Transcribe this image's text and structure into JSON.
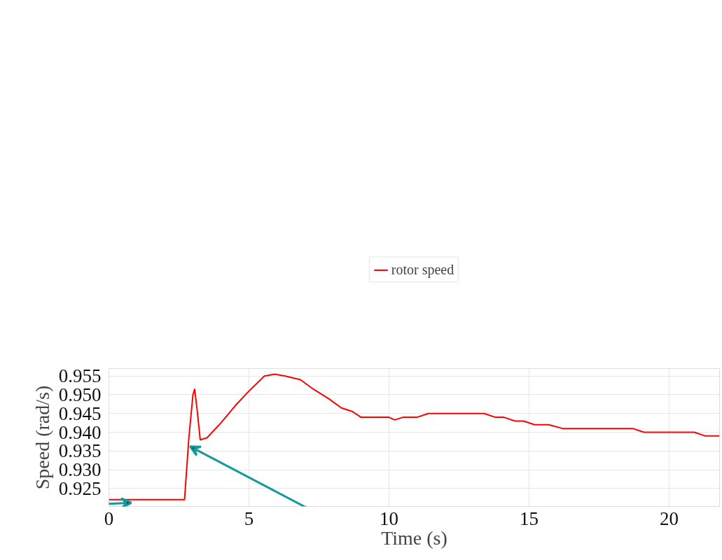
{
  "chart_data": {
    "type": "line",
    "xlabel": "Time (s)",
    "ylabel": "Speed (rad/s)",
    "xlim": [
      0,
      21.8
    ],
    "ylim": [
      0.9202,
      0.957
    ],
    "xticks": [
      0,
      5,
      10,
      15,
      20
    ],
    "yticks": [
      0.925,
      {
        "value": 0.93,
        "label": "0.930"
      },
      0.935,
      {
        "value": 0.94,
        "label": "0.940"
      },
      0.945,
      {
        "value": 0.95,
        "label": "0.950"
      },
      0.955
    ],
    "grid": true,
    "legend": "top",
    "line_style": "solid",
    "marker": "none",
    "series": [
      {
        "name": "rotor speed",
        "color": "#ff0000",
        "x": [
          0,
          2.7,
          2.85,
          3.0,
          3.06,
          3.15,
          3.26,
          3.5,
          4.0,
          4.5,
          5.0,
          5.55,
          5.92,
          6.3,
          6.84,
          7.3,
          7.84,
          8.3,
          8.7,
          9.0,
          9.83,
          10.0,
          10.2,
          10.5,
          11.0,
          11.4,
          13.4,
          13.8,
          14.1,
          14.5,
          14.8,
          15.2,
          15.7,
          16.2,
          18.7,
          19.1,
          20.9,
          21.3,
          21.8
        ],
        "values": [
          0.922,
          0.922,
          0.938,
          0.95,
          0.9515,
          0.946,
          0.938,
          0.9385,
          0.9425,
          0.947,
          0.951,
          0.955,
          0.9555,
          0.955,
          0.954,
          0.9515,
          0.949,
          0.9465,
          0.9455,
          0.944,
          0.944,
          0.944,
          0.9433,
          0.944,
          0.944,
          0.945,
          0.945,
          0.944,
          0.944,
          0.943,
          0.943,
          0.942,
          0.942,
          0.941,
          0.941,
          0.94,
          0.94,
          0.939,
          0.939
        ]
      }
    ]
  }
}
